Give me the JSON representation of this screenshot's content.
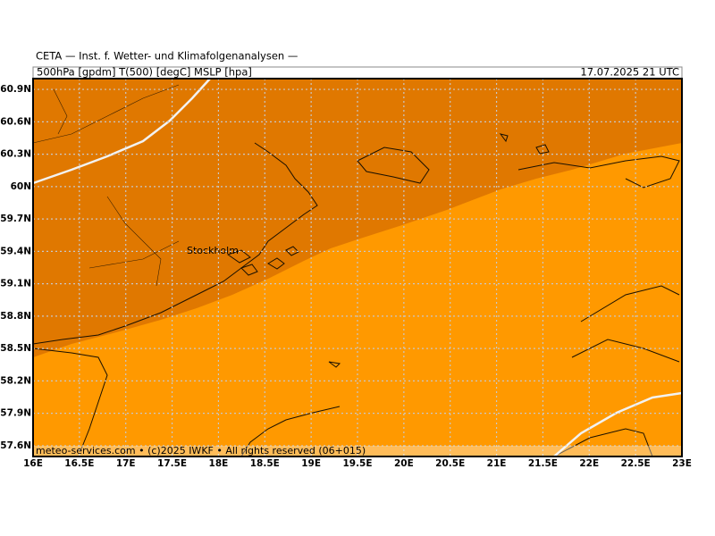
{
  "header": {
    "institute": "CETA — Inst. f. Wetter- und Klimafolgenanalysen —",
    "fields": "500hPa [gpdm] T(500) [degC] MSLP [hpa]",
    "valid_time": "17.07.2025 21 UTC"
  },
  "map": {
    "lonlim": [
      16,
      23
    ],
    "latlim": [
      57.5,
      61.0
    ],
    "latticks": [
      {
        "value": 60.9,
        "label": "60.9N"
      },
      {
        "value": 60.6,
        "label": "60.6N"
      },
      {
        "value": 60.3,
        "label": "60.3N"
      },
      {
        "value": 60,
        "label": "60N"
      },
      {
        "value": 59.7,
        "label": "59.7N"
      },
      {
        "value": 59.4,
        "label": "59.4N"
      },
      {
        "value": 59.1,
        "label": "59.1N"
      },
      {
        "value": 58.8,
        "label": "58.8N"
      },
      {
        "value": 58.5,
        "label": "58.5N"
      },
      {
        "value": 58.2,
        "label": "58.2N"
      },
      {
        "value": 57.9,
        "label": "57.9N"
      },
      {
        "value": 57.6,
        "label": "57.6N"
      }
    ],
    "lonticks": [
      {
        "value": 16,
        "label": "16E"
      },
      {
        "value": 16.5,
        "label": "16.5E"
      },
      {
        "value": 17,
        "label": "17E"
      },
      {
        "value": 17.5,
        "label": "17.5E"
      },
      {
        "value": 18,
        "label": "18E"
      },
      {
        "value": 18.5,
        "label": "18.5E"
      },
      {
        "value": 19,
        "label": "19E"
      },
      {
        "value": 19.5,
        "label": "19.5E"
      },
      {
        "value": 20,
        "label": "20E"
      },
      {
        "value": 20.5,
        "label": "20.5E"
      },
      {
        "value": 21,
        "label": "21E"
      },
      {
        "value": 21.5,
        "label": "21.5E"
      },
      {
        "value": 22,
        "label": "22E"
      },
      {
        "value": 22.5,
        "label": "22.5E"
      },
      {
        "value": 23,
        "label": "23E"
      }
    ],
    "city": "Stockholm"
  },
  "footer": "meteo-services.com • (c)2025 IWKF • All rights reserved (06+015)"
}
